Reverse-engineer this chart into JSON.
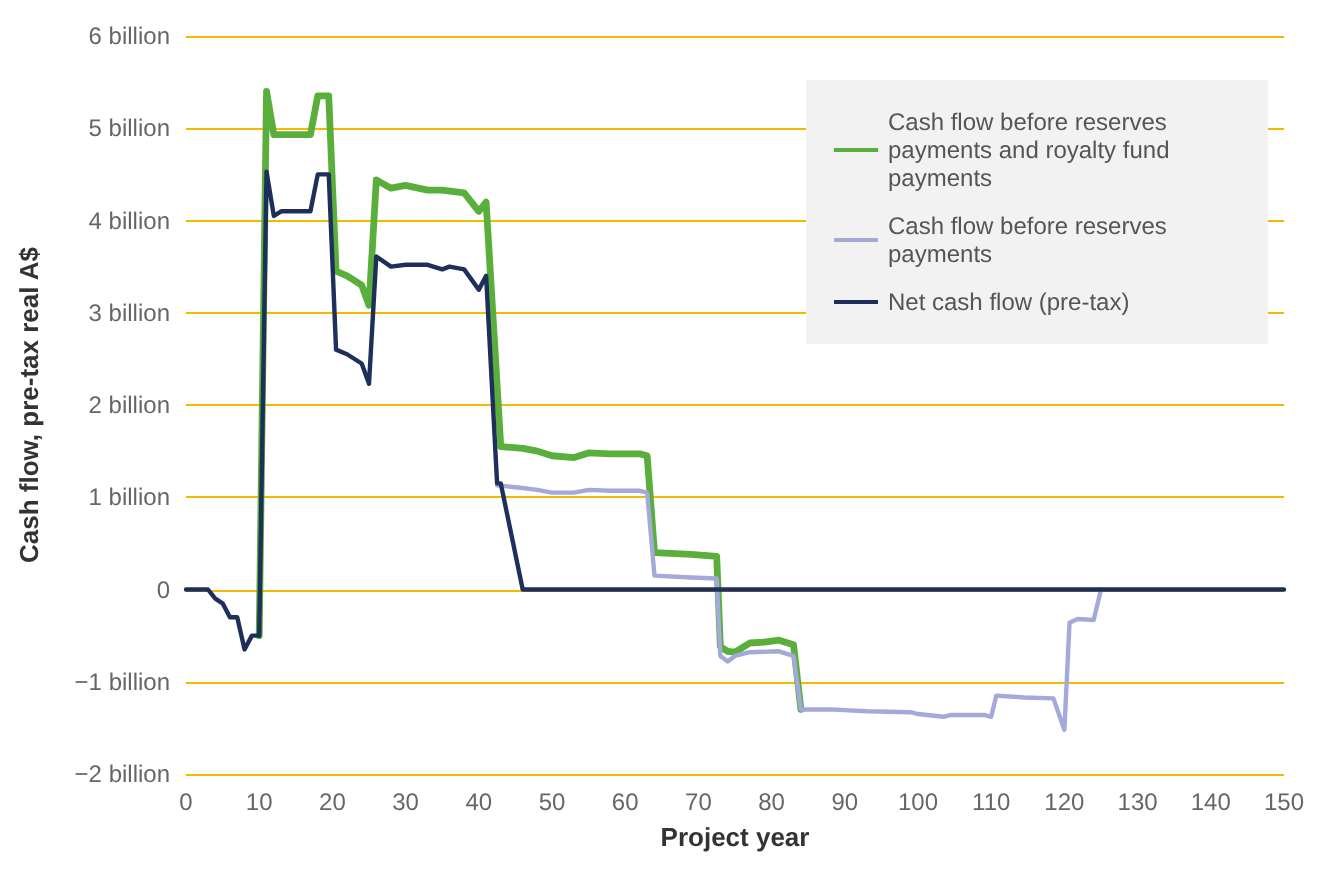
{
  "chart_data": {
    "type": "line",
    "xlabel": "Project year",
    "ylabel": "Cash flow, pre-tax real A$",
    "xlim": [
      0,
      150
    ],
    "xticks": [
      0,
      10,
      20,
      30,
      40,
      50,
      60,
      70,
      80,
      90,
      100,
      110,
      120,
      130,
      140,
      150
    ],
    "ylim": [
      -2,
      6
    ],
    "yticks": [
      {
        "value": -2,
        "label": "−2 billion"
      },
      {
        "value": -1,
        "label": "−1 billion"
      },
      0,
      {
        "value": 1,
        "label": "1 billion"
      },
      {
        "value": 2,
        "label": "2 billion"
      },
      {
        "value": 3,
        "label": "3 billion"
      },
      {
        "value": 4,
        "label": "4 billion"
      },
      {
        "value": 5,
        "label": "5 billion"
      },
      {
        "value": 6,
        "label": "6 billion"
      }
    ],
    "grid": "y",
    "legend": "top right",
    "marker": "none",
    "line_style": "solid",
    "series": [
      {
        "name": "Cash flow before reserves payments and royalty fund payments",
        "color": "#5aaf3c",
        "x": [
          10,
          11,
          12,
          17,
          18,
          19.5,
          20.5,
          22,
          24,
          25,
          26,
          28,
          30,
          33,
          35,
          38,
          40,
          41,
          43,
          46,
          48,
          50,
          53,
          55,
          58,
          62,
          63,
          64,
          69,
          72.5,
          73,
          74,
          75,
          77,
          79,
          81,
          83,
          84
        ],
        "values": [
          -0.5,
          5.4,
          4.93,
          4.93,
          5.35,
          5.35,
          3.45,
          3.4,
          3.3,
          3.08,
          4.44,
          4.35,
          4.38,
          4.33,
          4.33,
          4.3,
          4.1,
          4.2,
          1.55,
          1.53,
          1.5,
          1.45,
          1.43,
          1.48,
          1.47,
          1.47,
          1.45,
          0.4,
          0.38,
          0.36,
          -0.62,
          -0.67,
          -0.68,
          -0.58,
          -0.57,
          -0.55,
          -0.6,
          -1.3
        ]
      },
      {
        "name": "Cash flow before reserves payments",
        "color": "#a3a9d9",
        "x": [
          42.5,
          46,
          48,
          50,
          53,
          55,
          58,
          62,
          63,
          64,
          69,
          72.5,
          73,
          74,
          75,
          77,
          81,
          83,
          84,
          88,
          93,
          99,
          100,
          103.5,
          104.5,
          109,
          110,
          110.7,
          114.5,
          118.5,
          120,
          120.7,
          121.8,
          124,
          125
        ],
        "values": [
          1.13,
          1.1,
          1.08,
          1.05,
          1.05,
          1.08,
          1.07,
          1.07,
          1.05,
          0.15,
          0.13,
          0.12,
          -0.72,
          -0.78,
          -0.72,
          -0.68,
          -0.67,
          -0.72,
          -1.3,
          -1.3,
          -1.32,
          -1.33,
          -1.35,
          -1.38,
          -1.36,
          -1.36,
          -1.38,
          -1.15,
          -1.17,
          -1.18,
          -1.52,
          -0.36,
          -0.32,
          -0.33,
          0
        ]
      },
      {
        "name": "Net cash flow (pre-tax)",
        "color": "#1d2f5a",
        "x": [
          0,
          3,
          4,
          5,
          6,
          7,
          8,
          9,
          10,
          11,
          12,
          13,
          17,
          18,
          19.5,
          20.5,
          22,
          24,
          25,
          26,
          28,
          30,
          33,
          35,
          36,
          38,
          40,
          41,
          42.5,
          43,
          46,
          150
        ],
        "values": [
          0,
          0,
          -0.1,
          -0.15,
          -0.3,
          -0.3,
          -0.65,
          -0.5,
          -0.5,
          4.53,
          4.05,
          4.1,
          4.1,
          4.5,
          4.5,
          2.6,
          2.55,
          2.45,
          2.23,
          3.61,
          3.5,
          3.52,
          3.52,
          3.47,
          3.5,
          3.47,
          3.25,
          3.4,
          1.15,
          1.15,
          0,
          0
        ]
      }
    ]
  }
}
